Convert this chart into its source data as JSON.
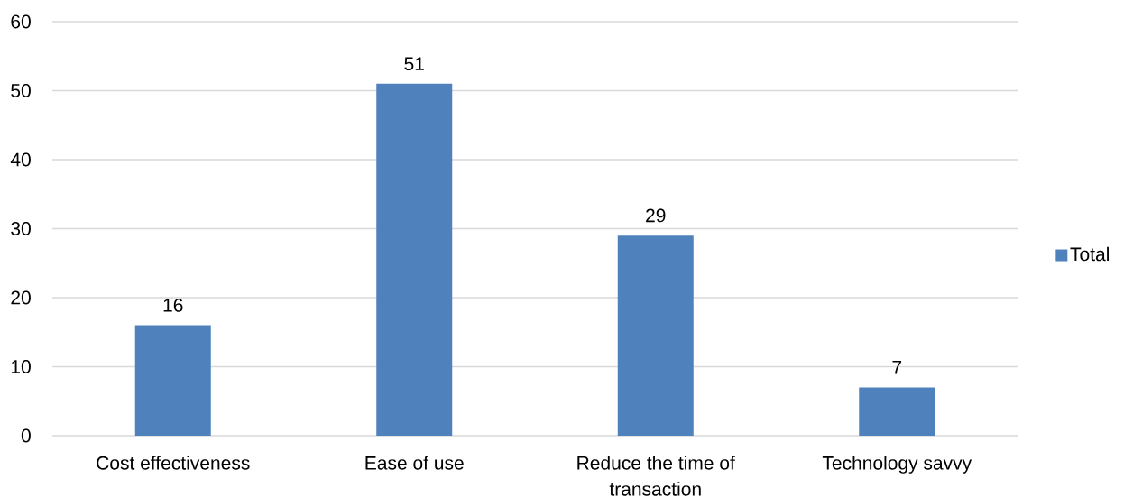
{
  "chart_data": {
    "type": "bar",
    "categories": [
      "Cost effectiveness",
      "Ease of use",
      "Reduce the time of transaction",
      "Technology savvy"
    ],
    "series": [
      {
        "name": "Total",
        "color": "#4f81bd",
        "values": [
          16,
          51,
          29,
          7
        ]
      }
    ],
    "ylim": [
      0,
      60
    ],
    "yticks": [
      0,
      10,
      20,
      30,
      40,
      50,
      60
    ],
    "grid": "y",
    "legend": "right",
    "data_labels": true
  }
}
